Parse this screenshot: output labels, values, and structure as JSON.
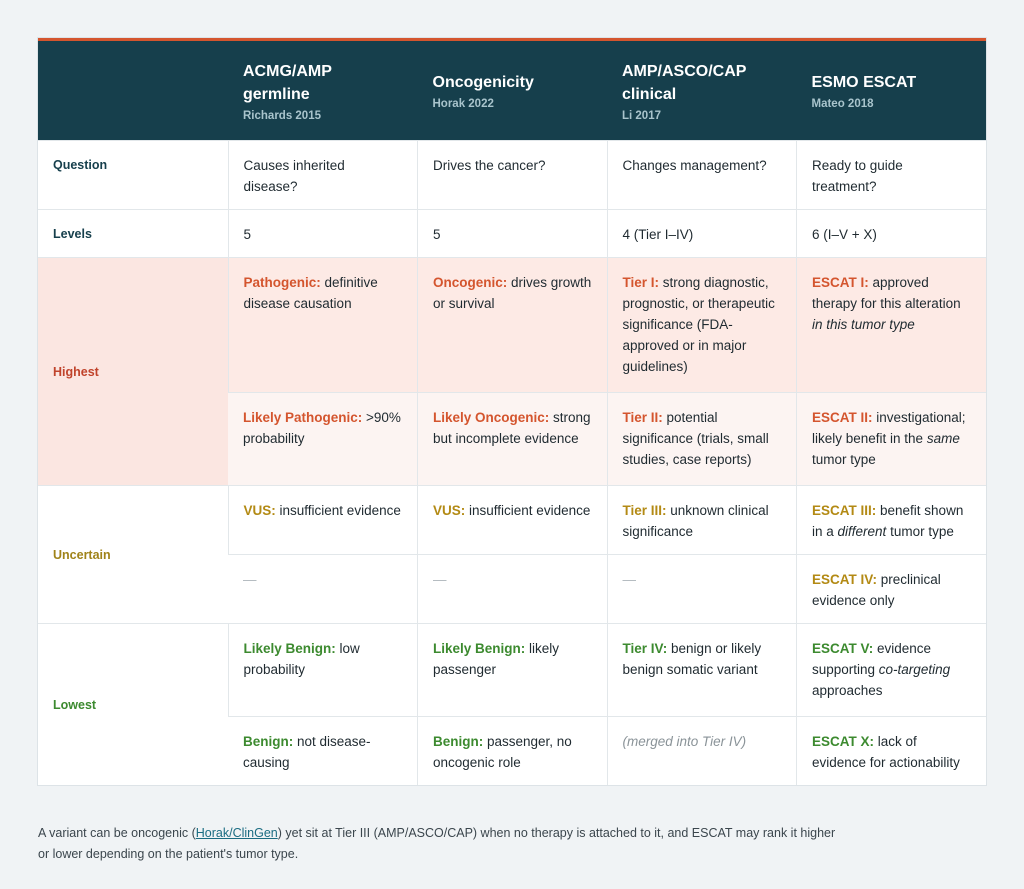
{
  "header": {
    "columns": [
      {
        "title": "",
        "sub": ""
      },
      {
        "title": "ACMG/AMP germline",
        "sub": "Richards 2015"
      },
      {
        "title": "Oncogenicity",
        "sub": "Horak 2022"
      },
      {
        "title": "AMP/ASCO/CAP clinical",
        "sub": "Li 2017"
      },
      {
        "title": "ESMO ESCAT",
        "sub": "Mateo 2018"
      }
    ]
  },
  "rows": {
    "question": {
      "label": "Question",
      "cells": [
        "Causes inherited disease?",
        "Drives the cancer?",
        "Changes management?",
        "Ready to guide treatment?"
      ]
    },
    "levels": {
      "label": "Levels",
      "cells": [
        "5",
        "5",
        "4 (Tier I–IV)",
        "6 (I–V + X)"
      ]
    },
    "highest": {
      "label": "Highest",
      "r1": [
        {
          "term": "Pathogenic:",
          "rest": " definitive disease causation"
        },
        {
          "term": "Oncogenic:",
          "rest": " drives growth or survival"
        },
        {
          "term": "Tier I:",
          "rest": " strong diagnostic, prognostic, or therapeutic significance (FDA-approved or in major guidelines)"
        },
        {
          "term": "ESCAT I:",
          "rest": " approved therapy for this alteration ",
          "em": "in this tumor type",
          "after": ""
        }
      ],
      "r2": [
        {
          "term": "Likely Pathogenic:",
          "rest": " >90% probability"
        },
        {
          "term": "Likely Oncogenic:",
          "rest": " strong but incomplete evidence"
        },
        {
          "term": "Tier II:",
          "rest": " potential significance (trials, small studies, case reports)"
        },
        {
          "term": "ESCAT II:",
          "rest": " investigational; likely benefit in the ",
          "em": "same",
          "after": " tumor type"
        }
      ]
    },
    "uncertain": {
      "label": "Uncertain",
      "r1": [
        {
          "term": "VUS:",
          "rest": " insufficient evidence"
        },
        {
          "term": "VUS:",
          "rest": " insufficient evidence"
        },
        {
          "term": "Tier III:",
          "rest": " unknown clinical significance"
        },
        {
          "term": "ESCAT III:",
          "rest": " benefit shown in a ",
          "em": "different",
          "after": " tumor type"
        }
      ],
      "r2": [
        {
          "dash": "—"
        },
        {
          "dash": "—"
        },
        {
          "dash": "—"
        },
        {
          "term": "ESCAT IV:",
          "rest": " preclinical evidence only"
        }
      ]
    },
    "lowest": {
      "label": "Lowest",
      "r1": [
        {
          "term": "Likely Benign:",
          "rest": " low probability"
        },
        {
          "term": "Likely Benign:",
          "rest": " likely passenger"
        },
        {
          "term": "Tier IV:",
          "rest": " benign or likely benign somatic variant"
        },
        {
          "term": "ESCAT V:",
          "rest": " evidence supporting ",
          "em": "co-targeting",
          "after": " approaches"
        }
      ],
      "r2": [
        {
          "term": "Benign:",
          "rest": " not disease-causing"
        },
        {
          "term": "Benign:",
          "rest": " passenger, no oncogenic role"
        },
        {
          "muted": "(merged into Tier IV)"
        },
        {
          "term": "ESCAT X:",
          "rest": " lack of evidence for actionability"
        }
      ]
    }
  },
  "footnote": {
    "before": "A variant can be oncogenic (",
    "link": "Horak/ClinGen",
    "after": ") yet sit at Tier III (AMP/ASCO/CAP) when no therapy is attached to it, and ESCAT may rank it higher or lower depending on the patient's tumor type."
  },
  "colors": {
    "header_bg": "#163f4c",
    "accent": "#d4552e",
    "highest": "#c0432b",
    "uncertain": "#a08319",
    "lowest": "#3c8a2f"
  }
}
